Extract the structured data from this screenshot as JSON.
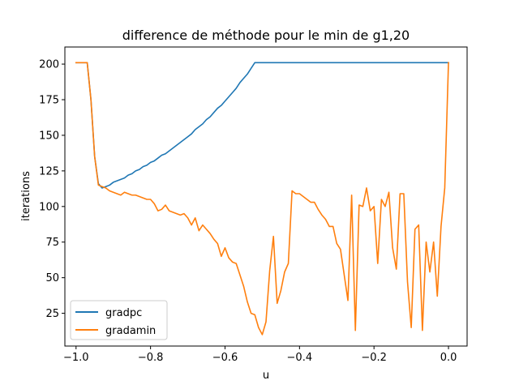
{
  "chart_data": {
    "type": "line",
    "title": "difference de méthode pour le min de g1,20",
    "xlabel": "u",
    "ylabel": "iterations",
    "xlim": [
      -1.03,
      0.05
    ],
    "ylim": [
      2,
      212
    ],
    "xticks": [
      -1.0,
      -0.8,
      -0.6,
      -0.4,
      -0.2,
      0.0
    ],
    "xtick_labels": [
      "−1.0",
      "−0.8",
      "−0.6",
      "−0.4",
      "−0.2",
      "0.0"
    ],
    "yticks": [
      25,
      50,
      75,
      100,
      125,
      150,
      175,
      200
    ],
    "ytick_labels": [
      "25",
      "50",
      "75",
      "100",
      "125",
      "150",
      "175",
      "200"
    ],
    "grid": false,
    "legend_position": "lower-left",
    "series": [
      {
        "name": "gradpc",
        "color": "#1f77b4",
        "points": [
          [
            -1.0,
            201
          ],
          [
            -0.98,
            201
          ],
          [
            -0.97,
            201
          ],
          [
            -0.96,
            175
          ],
          [
            -0.95,
            135
          ],
          [
            -0.94,
            116
          ],
          [
            -0.93,
            113
          ],
          [
            -0.92,
            114
          ],
          [
            -0.91,
            115
          ],
          [
            -0.9,
            117
          ],
          [
            -0.89,
            118
          ],
          [
            -0.88,
            119
          ],
          [
            -0.87,
            120
          ],
          [
            -0.86,
            122
          ],
          [
            -0.85,
            123
          ],
          [
            -0.84,
            125
          ],
          [
            -0.83,
            126
          ],
          [
            -0.82,
            128
          ],
          [
            -0.81,
            129
          ],
          [
            -0.8,
            131
          ],
          [
            -0.79,
            132
          ],
          [
            -0.78,
            134
          ],
          [
            -0.77,
            136
          ],
          [
            -0.76,
            137
          ],
          [
            -0.75,
            139
          ],
          [
            -0.74,
            141
          ],
          [
            -0.73,
            143
          ],
          [
            -0.72,
            145
          ],
          [
            -0.71,
            147
          ],
          [
            -0.7,
            149
          ],
          [
            -0.69,
            151
          ],
          [
            -0.68,
            154
          ],
          [
            -0.67,
            156
          ],
          [
            -0.66,
            158
          ],
          [
            -0.65,
            161
          ],
          [
            -0.64,
            163
          ],
          [
            -0.63,
            166
          ],
          [
            -0.62,
            169
          ],
          [
            -0.61,
            171
          ],
          [
            -0.6,
            174
          ],
          [
            -0.59,
            177
          ],
          [
            -0.58,
            180
          ],
          [
            -0.57,
            183
          ],
          [
            -0.56,
            187
          ],
          [
            -0.55,
            190
          ],
          [
            -0.54,
            193
          ],
          [
            -0.53,
            197
          ],
          [
            -0.52,
            201
          ],
          [
            -0.4,
            201
          ],
          [
            -0.2,
            201
          ],
          [
            0.0,
            201
          ]
        ]
      },
      {
        "name": "gradamin",
        "color": "#ff7f0e",
        "points": [
          [
            -1.0,
            201
          ],
          [
            -0.98,
            201
          ],
          [
            -0.97,
            201
          ],
          [
            -0.96,
            175
          ],
          [
            -0.95,
            135
          ],
          [
            -0.94,
            115
          ],
          [
            -0.93,
            114
          ],
          [
            -0.92,
            113
          ],
          [
            -0.91,
            111
          ],
          [
            -0.9,
            110
          ],
          [
            -0.89,
            109
          ],
          [
            -0.88,
            108
          ],
          [
            -0.87,
            110
          ],
          [
            -0.86,
            109
          ],
          [
            -0.85,
            108
          ],
          [
            -0.84,
            108
          ],
          [
            -0.83,
            107
          ],
          [
            -0.82,
            106
          ],
          [
            -0.81,
            105
          ],
          [
            -0.8,
            105
          ],
          [
            -0.79,
            102
          ],
          [
            -0.78,
            97
          ],
          [
            -0.77,
            98
          ],
          [
            -0.76,
            101
          ],
          [
            -0.75,
            97
          ],
          [
            -0.74,
            96
          ],
          [
            -0.73,
            95
          ],
          [
            -0.72,
            94
          ],
          [
            -0.71,
            95
          ],
          [
            -0.7,
            92
          ],
          [
            -0.69,
            87
          ],
          [
            -0.68,
            92
          ],
          [
            -0.67,
            83
          ],
          [
            -0.66,
            87
          ],
          [
            -0.65,
            84
          ],
          [
            -0.64,
            81
          ],
          [
            -0.63,
            77
          ],
          [
            -0.62,
            74
          ],
          [
            -0.61,
            65
          ],
          [
            -0.6,
            71
          ],
          [
            -0.59,
            64
          ],
          [
            -0.58,
            61
          ],
          [
            -0.57,
            60
          ],
          [
            -0.56,
            52
          ],
          [
            -0.55,
            44
          ],
          [
            -0.54,
            33
          ],
          [
            -0.53,
            25
          ],
          [
            -0.52,
            24
          ],
          [
            -0.51,
            15
          ],
          [
            -0.5,
            10
          ],
          [
            -0.49,
            19
          ],
          [
            -0.48,
            55
          ],
          [
            -0.47,
            79
          ],
          [
            -0.46,
            32
          ],
          [
            -0.45,
            41
          ],
          [
            -0.44,
            54
          ],
          [
            -0.43,
            60
          ],
          [
            -0.42,
            111
          ],
          [
            -0.41,
            109
          ],
          [
            -0.4,
            109
          ],
          [
            -0.39,
            107
          ],
          [
            -0.38,
            105
          ],
          [
            -0.37,
            103
          ],
          [
            -0.36,
            103
          ],
          [
            -0.35,
            98
          ],
          [
            -0.34,
            94
          ],
          [
            -0.33,
            91
          ],
          [
            -0.32,
            86
          ],
          [
            -0.31,
            86
          ],
          [
            -0.3,
            74
          ],
          [
            -0.29,
            70
          ],
          [
            -0.28,
            52
          ],
          [
            -0.27,
            34
          ],
          [
            -0.26,
            108
          ],
          [
            -0.25,
            13
          ],
          [
            -0.24,
            101
          ],
          [
            -0.23,
            100
          ],
          [
            -0.22,
            113
          ],
          [
            -0.21,
            97
          ],
          [
            -0.2,
            100
          ],
          [
            -0.19,
            60
          ],
          [
            -0.18,
            105
          ],
          [
            -0.17,
            100
          ],
          [
            -0.16,
            110
          ],
          [
            -0.15,
            71
          ],
          [
            -0.14,
            56
          ],
          [
            -0.13,
            109
          ],
          [
            -0.12,
            109
          ],
          [
            -0.11,
            47
          ],
          [
            -0.1,
            15
          ],
          [
            -0.09,
            84
          ],
          [
            -0.08,
            87
          ],
          [
            -0.07,
            13
          ],
          [
            -0.06,
            75
          ],
          [
            -0.05,
            54
          ],
          [
            -0.04,
            75
          ],
          [
            -0.03,
            37
          ],
          [
            -0.02,
            86
          ],
          [
            -0.01,
            113
          ],
          [
            0.0,
            201
          ]
        ]
      }
    ]
  }
}
